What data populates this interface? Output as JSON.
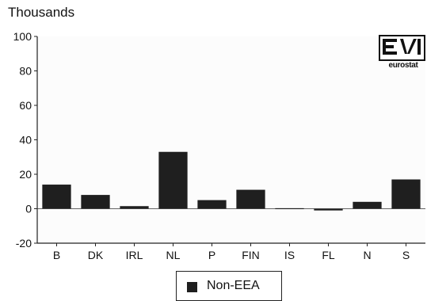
{
  "chart_data": {
    "type": "bar",
    "ylabel": "Thousands",
    "categories": [
      "B",
      "DK",
      "IRL",
      "NL",
      "P",
      "FIN",
      "IS",
      "FL",
      "N",
      "S"
    ],
    "series": [
      {
        "name": "Non-EEA",
        "values": [
          14,
          8,
          1.5,
          33,
          5,
          11,
          0.3,
          -1,
          4,
          17
        ],
        "color": "#1f1f1f"
      }
    ],
    "yticks": [
      100,
      80,
      60,
      40,
      20,
      0,
      -20
    ],
    "ylim": [
      -20,
      100
    ],
    "grid": false,
    "legend_placement": "bottom-center"
  },
  "logo": {
    "text": "eurostat"
  }
}
